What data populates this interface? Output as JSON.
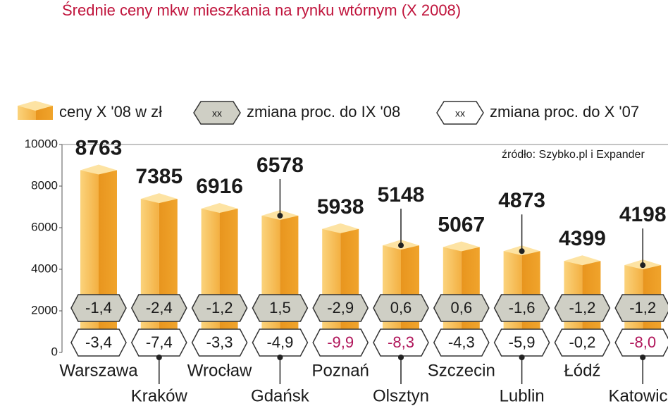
{
  "chart_data": {
    "type": "bar",
    "title": "Średnie ceny mkw mieszkania na rynku wtórnym (X 2008)",
    "title_color": "#c0143c",
    "source": "źródło: Szybko.pl i Expander",
    "categories": [
      "Warszawa",
      "Kraków",
      "Wrocław",
      "Gdańsk",
      "Poznań",
      "Olsztyn",
      "Szczecin",
      "Lublin",
      "Łódź",
      "Katowice"
    ],
    "series": [
      {
        "name": "ceny X '08 w zł",
        "color": "#f0a42c",
        "values": [
          8763,
          7385,
          6916,
          6578,
          5938,
          5148,
          5067,
          4873,
          4399,
          4198
        ]
      },
      {
        "name": "zmiana proc. do IX '08",
        "marker_label": "xx",
        "color": "#cfcfc5",
        "values": [
          -1.4,
          -2.4,
          -1.2,
          1.5,
          -2.9,
          0.6,
          0.6,
          -1.6,
          -1.2,
          -1.2
        ],
        "value_labels": [
          "-1,4",
          "-2,4",
          "-1,2",
          "1,5",
          "-2,9",
          "0,6",
          "0,6",
          "-1,6",
          "-1,2",
          "-1,2"
        ],
        "label_colors": [
          "#1a1a1a",
          "#1a1a1a",
          "#1a1a1a",
          "#1a1a1a",
          "#1a1a1a",
          "#1a1a1a",
          "#1a1a1a",
          "#1a1a1a",
          "#1a1a1a",
          "#1a1a1a"
        ]
      },
      {
        "name": "zmiana proc. do X '07",
        "marker_label": "xx",
        "color": "#ffffff",
        "values": [
          -3.4,
          -7.4,
          -3.3,
          -4.9,
          -9.9,
          -8.3,
          -4.3,
          -5.9,
          -0.2,
          -8.0
        ],
        "value_labels": [
          "-3,4",
          "-7,4",
          "-3,3",
          "-4,9",
          "-9,9",
          "-8,3",
          "-4,3",
          "-5,9",
          "-0,2",
          "-8,0"
        ],
        "label_colors": [
          "#1a1a1a",
          "#1a1a1a",
          "#1a1a1a",
          "#1a1a1a",
          "#b0155a",
          "#b0155a",
          "#1a1a1a",
          "#1a1a1a",
          "#1a1a1a",
          "#b0155a"
        ]
      }
    ],
    "ylim": [
      0,
      10000
    ],
    "yticks": [
      0,
      2000,
      4000,
      6000,
      8000,
      10000
    ]
  }
}
